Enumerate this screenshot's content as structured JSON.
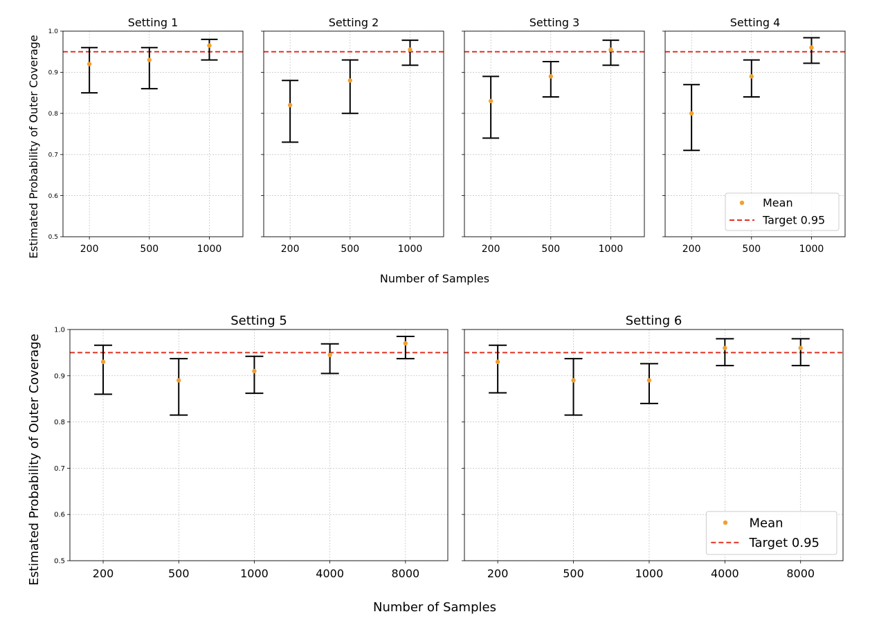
{
  "figure": {
    "ylabel": "Estimated Probability of Outer Coverage",
    "xlabel": "Number of Samples"
  },
  "legend": {
    "mean_label": "Mean",
    "target_label": "Target 0.95"
  },
  "colors": {
    "mean": "#f0a030",
    "target": "#e03020",
    "errorbar": "#000000",
    "grid": "#b0b0b0"
  },
  "chart_data": [
    {
      "type": "scatter",
      "title": "Setting 1",
      "categories": [
        "200",
        "500",
        "1000"
      ],
      "mean": [
        0.92,
        0.93,
        0.965
      ],
      "lower": [
        0.85,
        0.86,
        0.93
      ],
      "upper": [
        0.96,
        0.96,
        0.98
      ],
      "target": 0.95,
      "ylim": [
        0.5,
        1.0
      ],
      "yticks": [
        "0.5",
        "0.6",
        "0.7",
        "0.8",
        "0.9",
        "1.0"
      ],
      "grid": true,
      "legend": "none"
    },
    {
      "type": "scatter",
      "title": "Setting 2",
      "categories": [
        "200",
        "500",
        "1000"
      ],
      "mean": [
        0.82,
        0.88,
        0.955
      ],
      "lower": [
        0.73,
        0.8,
        0.917
      ],
      "upper": [
        0.88,
        0.93,
        0.978
      ],
      "target": 0.95,
      "ylim": [
        0.5,
        1.0
      ],
      "grid": true,
      "legend": "none"
    },
    {
      "type": "scatter",
      "title": "Setting 3",
      "categories": [
        "200",
        "500",
        "1000"
      ],
      "mean": [
        0.83,
        0.89,
        0.955
      ],
      "lower": [
        0.74,
        0.84,
        0.917
      ],
      "upper": [
        0.89,
        0.926,
        0.978
      ],
      "target": 0.95,
      "ylim": [
        0.5,
        1.0
      ],
      "grid": true,
      "legend": "none"
    },
    {
      "type": "scatter",
      "title": "Setting 4",
      "categories": [
        "200",
        "500",
        "1000"
      ],
      "mean": [
        0.8,
        0.89,
        0.96
      ],
      "lower": [
        0.71,
        0.84,
        0.922
      ],
      "upper": [
        0.87,
        0.93,
        0.984
      ],
      "target": 0.95,
      "ylim": [
        0.5,
        1.0
      ],
      "grid": true,
      "legend": "lower-right"
    },
    {
      "type": "scatter",
      "title": "Setting 5",
      "categories": [
        "200",
        "500",
        "1000",
        "4000",
        "8000"
      ],
      "mean": [
        0.93,
        0.89,
        0.91,
        0.945,
        0.97
      ],
      "lower": [
        0.86,
        0.815,
        0.862,
        0.905,
        0.937
      ],
      "upper": [
        0.966,
        0.937,
        0.942,
        0.969,
        0.985
      ],
      "target": 0.95,
      "ylim": [
        0.5,
        1.0
      ],
      "yticks": [
        "0.5",
        "0.6",
        "0.7",
        "0.8",
        "0.9",
        "1.0"
      ],
      "grid": true,
      "legend": "none"
    },
    {
      "type": "scatter",
      "title": "Setting 6",
      "categories": [
        "200",
        "500",
        "1000",
        "4000",
        "8000"
      ],
      "mean": [
        0.93,
        0.89,
        0.89,
        0.96,
        0.96
      ],
      "lower": [
        0.863,
        0.815,
        0.84,
        0.922,
        0.922
      ],
      "upper": [
        0.966,
        0.937,
        0.926,
        0.98,
        0.98
      ],
      "target": 0.95,
      "ylim": [
        0.5,
        1.0
      ],
      "grid": true,
      "legend": "lower-right"
    }
  ]
}
